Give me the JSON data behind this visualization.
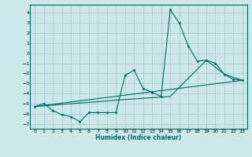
{
  "title": "",
  "xlabel": "Humidex (Indice chaleur)",
  "bg_color": "#cce8e8",
  "line_color": "#006868",
  "grid_color": "#a8cccc",
  "xlim": [
    -0.5,
    23.5
  ],
  "ylim": [
    -7.5,
    4.8
  ],
  "xticks": [
    0,
    1,
    2,
    3,
    4,
    5,
    6,
    7,
    8,
    9,
    10,
    11,
    12,
    13,
    14,
    15,
    16,
    17,
    18,
    19,
    20,
    21,
    22,
    23
  ],
  "yticks": [
    -7,
    -6,
    -5,
    -4,
    -3,
    -2,
    -1,
    0,
    1,
    2,
    3,
    4
  ],
  "line1_x": [
    0,
    1,
    2,
    3,
    4,
    5,
    6,
    7,
    8,
    9,
    10,
    11,
    12,
    13,
    14,
    15,
    16,
    17,
    18,
    19,
    20,
    21,
    22,
    23
  ],
  "line1_y": [
    -5.3,
    -5.0,
    -5.7,
    -6.1,
    -6.3,
    -6.8,
    -5.9,
    -5.9,
    -5.9,
    -5.9,
    -2.2,
    -1.7,
    -3.5,
    -3.9,
    -4.3,
    4.3,
    3.0,
    0.7,
    -0.8,
    -0.7,
    -1.0,
    -2.1,
    -2.6,
    -2.7
  ],
  "line2_x": [
    0,
    23
  ],
  "line2_y": [
    -5.3,
    -2.7
  ],
  "line3_x": [
    0,
    10,
    15,
    19,
    21,
    23
  ],
  "line3_y": [
    -5.3,
    -4.6,
    -4.3,
    -0.7,
    -2.1,
    -2.7
  ]
}
